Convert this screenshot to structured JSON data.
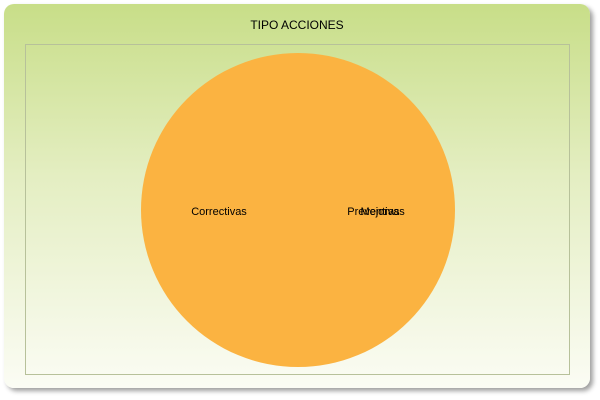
{
  "chart_data": {
    "type": "pie",
    "title": "TIPO ACCIONES",
    "categories": [
      "Correctivas",
      "Preventivas",
      "Mejoras"
    ],
    "values": [
      1,
      0,
      0
    ],
    "colors": [
      "#fbb341",
      "#f79646",
      "#9bbb59"
    ],
    "grid": false,
    "legend": "none"
  },
  "colors": {
    "panel_top": "#c8de88",
    "panel_bottom": "#fbfcf4",
    "slice": "#fbb341"
  }
}
